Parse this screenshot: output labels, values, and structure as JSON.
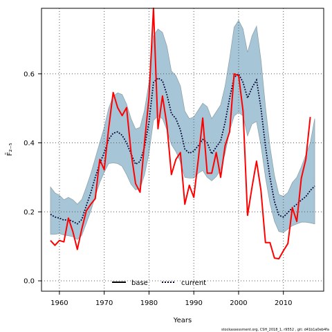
{
  "chart_data": {
    "type": "line",
    "xlabel": "Years",
    "ylabel": "F̄₂₋₅",
    "xlim": [
      1956,
      2019
    ],
    "ylim": [
      -0.03,
      0.79
    ],
    "xticks": [
      1960,
      1970,
      1980,
      1990,
      2000,
      2010
    ],
    "yticks": [
      0.0,
      0.2,
      0.4,
      0.6
    ],
    "ytick_labels": [
      "0.0",
      "0.2",
      "0.4",
      "0.6"
    ],
    "grid": true,
    "legend_position": "bottom-center",
    "colors": {
      "base": "#ff0000",
      "current": "#000033",
      "band_fill": "#a6c5d6",
      "band_edge": "#8fa3ad",
      "grid": "#555555"
    },
    "series": [
      {
        "name": "base",
        "style": "solid",
        "x": [
          1958,
          1959,
          1960,
          1961,
          1962,
          1963,
          1964,
          1965,
          1966,
          1967,
          1968,
          1969,
          1970,
          1971,
          1972,
          1973,
          1974,
          1975,
          1976,
          1977,
          1978,
          1979,
          1980,
          1981,
          1982,
          1983,
          1984,
          1985,
          1986,
          1987,
          1988,
          1989,
          1990,
          1991,
          1992,
          1993,
          1994,
          1995,
          1996,
          1997,
          1998,
          1999,
          2000,
          2001,
          2002,
          2003,
          2004,
          2005,
          2006,
          2007,
          2008,
          2009,
          2010,
          2011,
          2012,
          2013,
          2014,
          2015,
          2016
        ],
        "values": [
          0.117,
          0.103,
          0.117,
          0.113,
          0.182,
          0.143,
          0.091,
          0.151,
          0.203,
          0.222,
          0.238,
          0.352,
          0.322,
          0.442,
          0.546,
          0.502,
          0.479,
          0.502,
          0.372,
          0.282,
          0.257,
          0.402,
          0.532,
          0.79,
          0.441,
          0.536,
          0.452,
          0.308,
          0.352,
          0.372,
          0.222,
          0.277,
          0.242,
          0.352,
          0.472,
          0.312,
          0.312,
          0.372,
          0.3,
          0.392,
          0.432,
          0.6,
          0.595,
          0.492,
          0.19,
          0.272,
          0.347,
          0.262,
          0.111,
          0.111,
          0.066,
          0.064,
          0.087,
          0.108,
          0.212,
          0.172,
          0.297,
          0.352,
          0.475
        ]
      },
      {
        "name": "current",
        "style": "dotted",
        "x": [
          1958,
          1959,
          1960,
          1961,
          1962,
          1963,
          1964,
          1965,
          1966,
          1967,
          1968,
          1969,
          1970,
          1971,
          1972,
          1973,
          1974,
          1975,
          1976,
          1977,
          1978,
          1979,
          1980,
          1981,
          1982,
          1983,
          1984,
          1985,
          1986,
          1987,
          1988,
          1989,
          1990,
          1991,
          1992,
          1993,
          1994,
          1995,
          1996,
          1997,
          1998,
          1999,
          2000,
          2001,
          2002,
          2003,
          2004,
          2005,
          2006,
          2007,
          2008,
          2009,
          2010,
          2011,
          2012,
          2013,
          2014,
          2015,
          2016,
          2017
        ],
        "values": [
          0.193,
          0.185,
          0.182,
          0.176,
          0.178,
          0.172,
          0.165,
          0.178,
          0.218,
          0.255,
          0.3,
          0.34,
          0.372,
          0.41,
          0.428,
          0.432,
          0.422,
          0.4,
          0.368,
          0.338,
          0.346,
          0.388,
          0.46,
          0.575,
          0.588,
          0.58,
          0.54,
          0.485,
          0.47,
          0.438,
          0.382,
          0.37,
          0.376,
          0.392,
          0.41,
          0.4,
          0.368,
          0.388,
          0.405,
          0.46,
          0.53,
          0.59,
          0.6,
          0.575,
          0.53,
          0.56,
          0.582,
          0.5,
          0.39,
          0.3,
          0.23,
          0.19,
          0.185,
          0.198,
          0.212,
          0.222,
          0.234,
          0.244,
          0.262,
          0.275
        ]
      }
    ],
    "band": {
      "x": [
        1958,
        1959,
        1960,
        1961,
        1962,
        1963,
        1964,
        1965,
        1966,
        1967,
        1968,
        1969,
        1970,
        1971,
        1972,
        1973,
        1974,
        1975,
        1976,
        1977,
        1978,
        1979,
        1980,
        1981,
        1982,
        1983,
        1984,
        1985,
        1986,
        1987,
        1988,
        1989,
        1990,
        1991,
        1992,
        1993,
        1994,
        1995,
        1996,
        1997,
        1998,
        1999,
        2000,
        2001,
        2002,
        2003,
        2004,
        2005,
        2006,
        2007,
        2008,
        2009,
        2010,
        2011,
        2012,
        2013,
        2014,
        2015,
        2016,
        2017
      ],
      "upper": [
        0.272,
        0.255,
        0.248,
        0.235,
        0.242,
        0.235,
        0.222,
        0.236,
        0.272,
        0.31,
        0.355,
        0.4,
        0.445,
        0.5,
        0.535,
        0.545,
        0.54,
        0.512,
        0.47,
        0.44,
        0.445,
        0.495,
        0.575,
        0.71,
        0.73,
        0.72,
        0.68,
        0.608,
        0.595,
        0.565,
        0.492,
        0.47,
        0.475,
        0.495,
        0.515,
        0.505,
        0.47,
        0.49,
        0.51,
        0.565,
        0.645,
        0.735,
        0.755,
        0.73,
        0.662,
        0.71,
        0.738,
        0.64,
        0.505,
        0.39,
        0.305,
        0.25,
        0.245,
        0.256,
        0.285,
        0.3,
        0.33,
        0.365,
        0.4,
        0.47
      ],
      "lower": [
        0.135,
        0.135,
        0.137,
        0.133,
        0.131,
        0.128,
        0.12,
        0.132,
        0.167,
        0.202,
        0.245,
        0.285,
        0.315,
        0.34,
        0.342,
        0.34,
        0.332,
        0.308,
        0.28,
        0.264,
        0.268,
        0.308,
        0.37,
        0.465,
        0.478,
        0.47,
        0.438,
        0.395,
        0.375,
        0.345,
        0.3,
        0.298,
        0.298,
        0.312,
        0.32,
        0.3,
        0.29,
        0.302,
        0.322,
        0.37,
        0.435,
        0.478,
        0.488,
        0.478,
        0.42,
        0.455,
        0.462,
        0.392,
        0.3,
        0.225,
        0.173,
        0.143,
        0.14,
        0.15,
        0.16,
        0.165,
        0.17,
        0.17,
        0.168,
        0.165
      ]
    }
  },
  "legend": {
    "base_label": "base",
    "current_label": "current"
  },
  "footer": {
    "text": "stockassessment.org, CSH_2018_1, r9552 , git: d41b1a0eb4fa"
  }
}
